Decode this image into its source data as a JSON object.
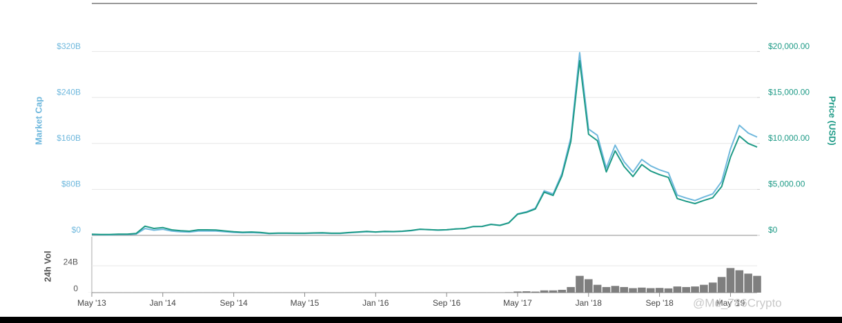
{
  "chart_data": [
    {
      "type": "line",
      "xlim": [
        "2013-05",
        "2019-08"
      ],
      "x": [
        "2013-05",
        "2013-06",
        "2013-07",
        "2013-08",
        "2013-09",
        "2013-10",
        "2013-11",
        "2013-12",
        "2014-01",
        "2014-02",
        "2014-03",
        "2014-04",
        "2014-05",
        "2014-06",
        "2014-07",
        "2014-08",
        "2014-09",
        "2014-10",
        "2014-11",
        "2014-12",
        "2015-01",
        "2015-02",
        "2015-03",
        "2015-04",
        "2015-05",
        "2015-06",
        "2015-07",
        "2015-08",
        "2015-09",
        "2015-10",
        "2015-11",
        "2015-12",
        "2016-01",
        "2016-02",
        "2016-03",
        "2016-04",
        "2016-05",
        "2016-06",
        "2016-07",
        "2016-08",
        "2016-09",
        "2016-10",
        "2016-11",
        "2016-12",
        "2017-01",
        "2017-02",
        "2017-03",
        "2017-04",
        "2017-05",
        "2017-06",
        "2017-07",
        "2017-08",
        "2017-09",
        "2017-10",
        "2017-11",
        "2017-12",
        "2018-01",
        "2018-02",
        "2018-03",
        "2018-04",
        "2018-05",
        "2018-06",
        "2018-07",
        "2018-08",
        "2018-09",
        "2018-10",
        "2018-11",
        "2018-12",
        "2019-01",
        "2019-02",
        "2019-03",
        "2019-04",
        "2019-05",
        "2019-06",
        "2019-07",
        "2019-08"
      ],
      "series": [
        {
          "name": "Market Cap",
          "color": "#6fb8dd",
          "values": [
            1.3,
            1.1,
            1.0,
            1.5,
            1.5,
            2.3,
            11.9,
            9.0,
            10.6,
            7.5,
            6.3,
            5.7,
            7.6,
            7.7,
            7.4,
            6.2,
            5.2,
            4.4,
            4.8,
            4.2,
            3.0,
            3.5,
            3.5,
            3.2,
            3.3,
            3.7,
            4.0,
            3.3,
            3.4,
            4.5,
            5.4,
            6.3,
            5.6,
            6.5,
            6.3,
            6.9,
            8.2,
            10.4,
            9.8,
            9.0,
            9.6,
            11.0,
            11.7,
            15.3,
            15.6,
            19.2,
            17.5,
            21.9,
            37.5,
            41.0,
            47.2,
            77.6,
            71.9,
            107.6,
            170.3,
            318.0,
            185,
            174,
            117,
            157,
            128,
            110,
            132,
            121,
            114,
            109,
            70,
            65,
            60.5,
            66.8,
            72.2,
            93.6,
            150.4,
            191.6,
            178,
            171
          ]
        },
        {
          "name": "Price (USD)",
          "color": "#1d9a86",
          "axis": "y2",
          "values": [
            120,
            100,
            90,
            130,
            130,
            200,
            1000,
            750,
            850,
            600,
            500,
            450,
            600,
            600,
            580,
            480,
            400,
            340,
            370,
            320,
            220,
            250,
            250,
            230,
            235,
            260,
            285,
            230,
            235,
            310,
            370,
            430,
            370,
            430,
            415,
            450,
            530,
            670,
            625,
            575,
            610,
            700,
            740,
            960,
            970,
            1190,
            1080,
            1350,
            2300,
            2500,
            2870,
            4700,
            4340,
            6470,
            10200,
            19000,
            11000,
            10300,
            6900,
            9200,
            7500,
            6400,
            7700,
            7000,
            6600,
            6300,
            4000,
            3700,
            3450,
            3800,
            4100,
            5300,
            8500,
            10800,
            10000,
            9600
          ]
        }
      ],
      "ylim": [
        0,
        400
      ],
      "yticks": [
        {
          "value": 0,
          "label": "$0"
        },
        {
          "value": 80,
          "label": "$80B"
        },
        {
          "value": 160,
          "label": "$160B"
        },
        {
          "value": 240,
          "label": "$240B"
        },
        {
          "value": 320,
          "label": "$320B"
        }
      ],
      "y2lim": [
        0,
        25000
      ],
      "y2ticks": [
        {
          "value": 0,
          "label": "$0"
        },
        {
          "value": 5000,
          "label": "$5,000.00"
        },
        {
          "value": 10000,
          "label": "$10,000.00"
        },
        {
          "value": 15000,
          "label": "$15,000.00"
        },
        {
          "value": 20000,
          "label": "$20,000.00"
        }
      ],
      "grid": true
    },
    {
      "type": "bar",
      "ylabel": "24h Vol",
      "color": "#7f7f7f",
      "xlim": [
        "2013-05",
        "2019-08"
      ],
      "x": [
        "2013-05",
        "2013-06",
        "2013-07",
        "2013-08",
        "2013-09",
        "2013-10",
        "2013-11",
        "2013-12",
        "2014-01",
        "2014-02",
        "2014-03",
        "2014-04",
        "2014-05",
        "2014-06",
        "2014-07",
        "2014-08",
        "2014-09",
        "2014-10",
        "2014-11",
        "2014-12",
        "2015-01",
        "2015-02",
        "2015-03",
        "2015-04",
        "2015-05",
        "2015-06",
        "2015-07",
        "2015-08",
        "2015-09",
        "2015-10",
        "2015-11",
        "2015-12",
        "2016-01",
        "2016-02",
        "2016-03",
        "2016-04",
        "2016-05",
        "2016-06",
        "2016-07",
        "2016-08",
        "2016-09",
        "2016-10",
        "2016-11",
        "2016-12",
        "2017-01",
        "2017-02",
        "2017-03",
        "2017-04",
        "2017-05",
        "2017-06",
        "2017-07",
        "2017-08",
        "2017-09",
        "2017-10",
        "2017-11",
        "2017-12",
        "2018-01",
        "2018-02",
        "2018-03",
        "2018-04",
        "2018-05",
        "2018-06",
        "2018-07",
        "2018-08",
        "2018-09",
        "2018-10",
        "2018-11",
        "2018-12",
        "2019-01",
        "2019-02",
        "2019-03",
        "2019-04",
        "2019-05",
        "2019-06",
        "2019-07",
        "2019-08"
      ],
      "values": [
        0.05,
        0.05,
        0.05,
        0.05,
        0.05,
        0.05,
        0.1,
        0.1,
        0.1,
        0.05,
        0.05,
        0.05,
        0.05,
        0.05,
        0.05,
        0.05,
        0.05,
        0.05,
        0.05,
        0.05,
        0.05,
        0.05,
        0.05,
        0.05,
        0.05,
        0.05,
        0.05,
        0.05,
        0.05,
        0.05,
        0.1,
        0.1,
        0.1,
        0.1,
        0.1,
        0.1,
        0.1,
        0.1,
        0.1,
        0.1,
        0.1,
        0.1,
        0.1,
        0.2,
        0.3,
        0.3,
        0.3,
        0.4,
        1.0,
        1.2,
        0.9,
        2.0,
        2.0,
        2.5,
        5.0,
        15.0,
        12.0,
        7.0,
        5.0,
        6.0,
        5.0,
        4.0,
        4.5,
        4.0,
        4.2,
        3.8,
        5.5,
        5.0,
        5.5,
        7.0,
        9.0,
        14.0,
        22.0,
        20.0,
        17.0,
        15.0
      ],
      "ylim": [
        0,
        50
      ],
      "yticks": [
        0,
        {
          "value": 24,
          "label": "24B"
        }
      ],
      "xticks": [
        {
          "value": "2013-05",
          "label": "May '13"
        },
        {
          "value": "2014-01",
          "label": "Jan '14"
        },
        {
          "value": "2014-09",
          "label": "Sep '14"
        },
        {
          "value": "2015-05",
          "label": "May '15"
        },
        {
          "value": "2016-01",
          "label": "Jan '16"
        },
        {
          "value": "2016-09",
          "label": "Sep '16"
        },
        {
          "value": "2017-05",
          "label": "May '17"
        },
        {
          "value": "2018-01",
          "label": "Jan '18"
        },
        {
          "value": "2018-09",
          "label": "Sep '18"
        },
        {
          "value": "2019-05",
          "label": "May '19"
        }
      ],
      "grid": true
    }
  ],
  "watermark": "@Md_786Crypto"
}
